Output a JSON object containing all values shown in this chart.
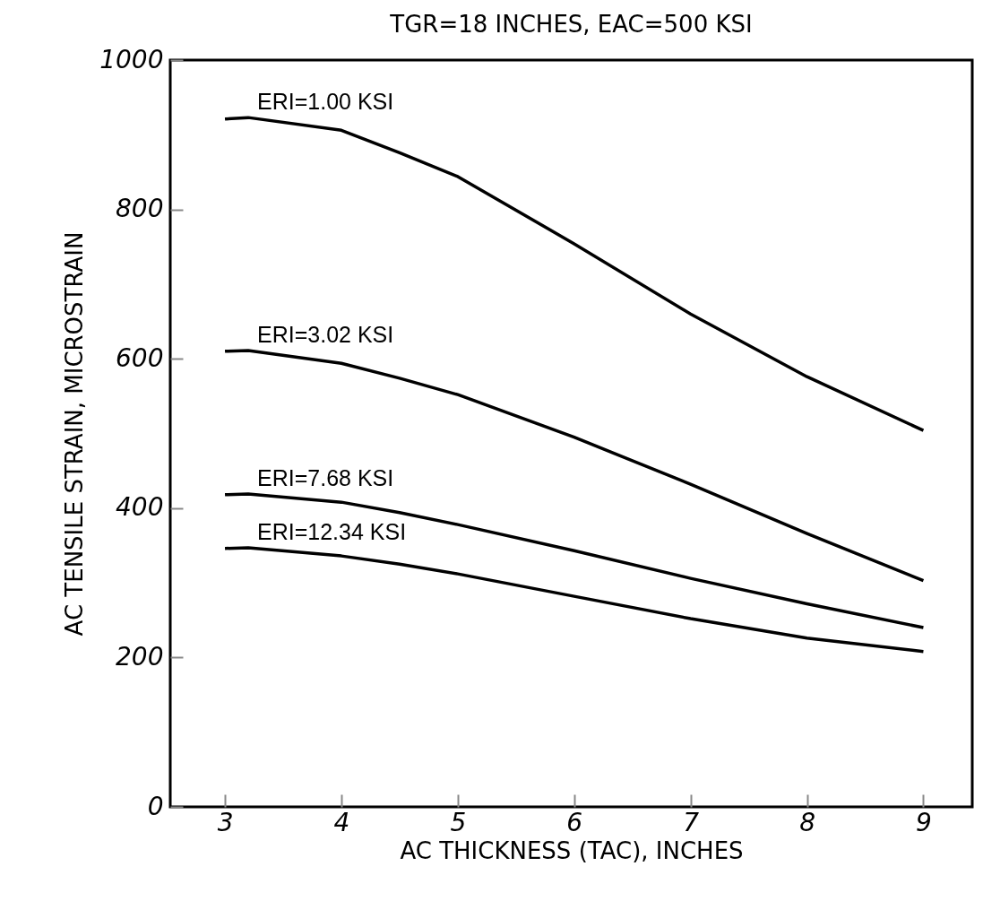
{
  "chart_data": {
    "type": "line",
    "title": "TGR=18 INCHES, EAC=500 KSI",
    "xlabel": "AC THICKNESS (TAC), INCHES",
    "ylabel": "AC TENSILE STRAIN, MICROSTRAIN",
    "x": [
      3,
      3.2,
      4,
      4.5,
      5,
      6,
      7,
      8,
      9
    ],
    "series": [
      {
        "name": "ERI=1.00 KSI",
        "color": "#000000",
        "values": [
          921,
          923,
          906,
          876,
          844,
          754,
          660,
          576,
          504
        ]
      },
      {
        "name": "ERI=3.02 KSI",
        "color": "#000000",
        "values": [
          610,
          611,
          594,
          574,
          552,
          495,
          432,
          366,
          303
        ]
      },
      {
        "name": "ERI=7.68 KSI",
        "color": "#000000",
        "values": [
          418,
          419,
          408,
          394,
          378,
          343,
          306,
          272,
          240
        ]
      },
      {
        "name": "ERI=12.34 KSI",
        "color": "#000000",
        "values": [
          346,
          347,
          336,
          325,
          312,
          282,
          252,
          226,
          208
        ]
      }
    ],
    "xlim": [
      2.53,
      9.42
    ],
    "xticks": [
      3,
      4,
      5,
      6,
      7,
      8,
      9
    ],
    "ylim": [
      0,
      1000
    ],
    "yticks": [
      0,
      200,
      400,
      600,
      800,
      1000
    ],
    "grid": false,
    "legend": false,
    "line_style": "solid",
    "marker": "none"
  }
}
